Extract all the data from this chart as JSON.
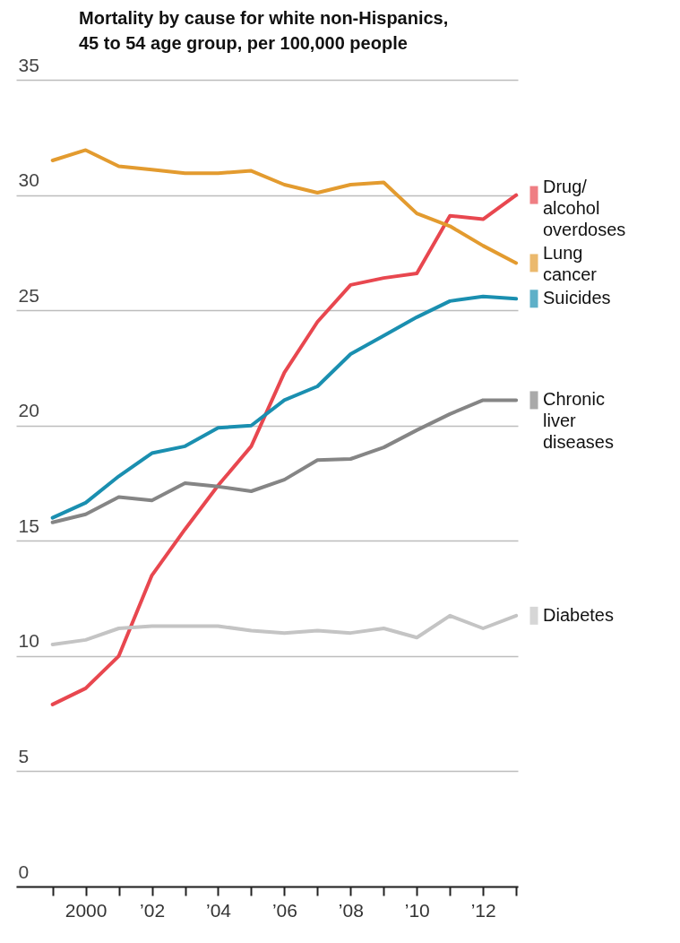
{
  "chart_data": {
    "type": "line",
    "title": "Mortality by cause for white non-Hispanics, 45 to 54 age group, per 100,000 people",
    "x": [
      1999,
      2000,
      2001,
      2002,
      2003,
      2004,
      2005,
      2006,
      2007,
      2008,
      2009,
      2010,
      2011,
      2012,
      2013
    ],
    "series": [
      {
        "name": "Drug/alcohol overdoses",
        "color": "#e8474f",
        "values": [
          7.9,
          8.6,
          10.0,
          13.5,
          15.5,
          17.4,
          19.1,
          22.3,
          24.5,
          26.1,
          26.4,
          26.6,
          29.1,
          28.95,
          30.0
        ]
      },
      {
        "name": "Lung cancer",
        "color": "#e39b2f",
        "values": [
          31.5,
          31.95,
          31.25,
          31.1,
          30.95,
          30.95,
          31.05,
          30.45,
          30.1,
          30.45,
          30.55,
          29.2,
          28.65,
          27.8,
          27.05
        ]
      },
      {
        "name": "Suicides",
        "color": "#1a8fb0",
        "values": [
          16.0,
          16.65,
          17.8,
          18.8,
          19.1,
          19.9,
          20.0,
          21.1,
          21.7,
          23.1,
          23.9,
          24.7,
          25.4,
          25.6,
          25.5
        ]
      },
      {
        "name": "Chronic liver diseases",
        "color": "#858585",
        "values": [
          15.8,
          16.15,
          16.9,
          16.75,
          17.5,
          17.35,
          17.15,
          17.65,
          18.5,
          18.55,
          19.05,
          19.8,
          20.5,
          21.1,
          21.1
        ]
      },
      {
        "name": "Diabetes",
        "color": "#c4c4c4",
        "values": [
          10.5,
          10.7,
          11.2,
          11.3,
          11.3,
          11.3,
          11.1,
          11.0,
          11.1,
          11.0,
          11.2,
          10.8,
          11.75,
          11.2,
          11.75
        ]
      }
    ],
    "xlim": [
      1997.9,
      2013.05
    ],
    "xticks": [
      {
        "value": 1999,
        "label": null
      },
      {
        "value": 2000,
        "label": "2000"
      },
      {
        "value": 2001,
        "label": null
      },
      {
        "value": 2002,
        "label": "’02"
      },
      {
        "value": 2003,
        "label": null
      },
      {
        "value": 2004,
        "label": "’04"
      },
      {
        "value": 2005,
        "label": null
      },
      {
        "value": 2006,
        "label": "’06"
      },
      {
        "value": 2007,
        "label": null
      },
      {
        "value": 2008,
        "label": "’08"
      },
      {
        "value": 2009,
        "label": null
      },
      {
        "value": 2010,
        "label": "’10"
      },
      {
        "value": 2011,
        "label": null
      },
      {
        "value": 2012,
        "label": "’12"
      },
      {
        "value": 2013,
        "label": null
      }
    ],
    "ylim": [
      0,
      35
    ],
    "yticks": [
      0,
      5,
      10,
      15,
      20,
      25,
      30,
      35
    ],
    "grid": "y",
    "legend": "right",
    "marker": "none",
    "line_style": "solid"
  }
}
